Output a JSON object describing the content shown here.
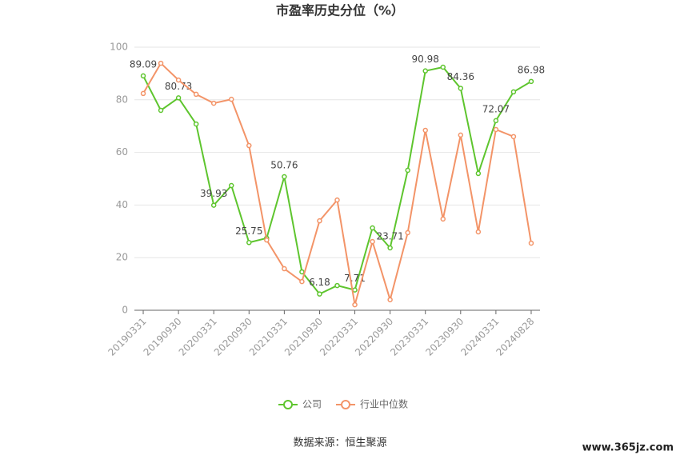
{
  "chart_data": {
    "type": "line",
    "title": "市盈率历史分位（%）",
    "categories": [
      "20190331",
      null,
      "20190930",
      null,
      "20200331",
      null,
      "20200930",
      null,
      "20210331",
      null,
      "20210930",
      null,
      "20220331",
      null,
      "20220930",
      null,
      "20230331",
      null,
      "20230930",
      null,
      "20240331",
      null,
      "20240828"
    ],
    "series": [
      {
        "name": "公司",
        "color": "#5ec52e",
        "data_labels": true,
        "values": [
          89.09,
          76.0,
          80.73,
          70.8,
          39.93,
          47.4,
          25.75,
          27.4,
          50.76,
          14.6,
          6.18,
          9.4,
          7.71,
          31.3,
          23.71,
          53.2,
          90.98,
          92.4,
          84.36,
          52.0,
          72.07,
          83.0,
          86.98
        ]
      },
      {
        "name": "行业中位数",
        "color": "#f39468",
        "data_labels": false,
        "values": [
          82.4,
          93.9,
          87.5,
          82.1,
          78.7,
          80.2,
          62.6,
          26.7,
          15.8,
          10.9,
          34.0,
          41.9,
          2.1,
          26.1,
          4.0,
          29.5,
          68.4,
          34.7,
          66.6,
          29.8,
          68.7,
          66.0,
          25.5
        ]
      }
    ],
    "ylim": [
      0,
      100
    ],
    "yticks": [
      0,
      20,
      40,
      60,
      80,
      100
    ],
    "grid": true,
    "legend": "bottom",
    "source": "数据来源：恒生聚源",
    "watermark": "www.365jz.com"
  }
}
